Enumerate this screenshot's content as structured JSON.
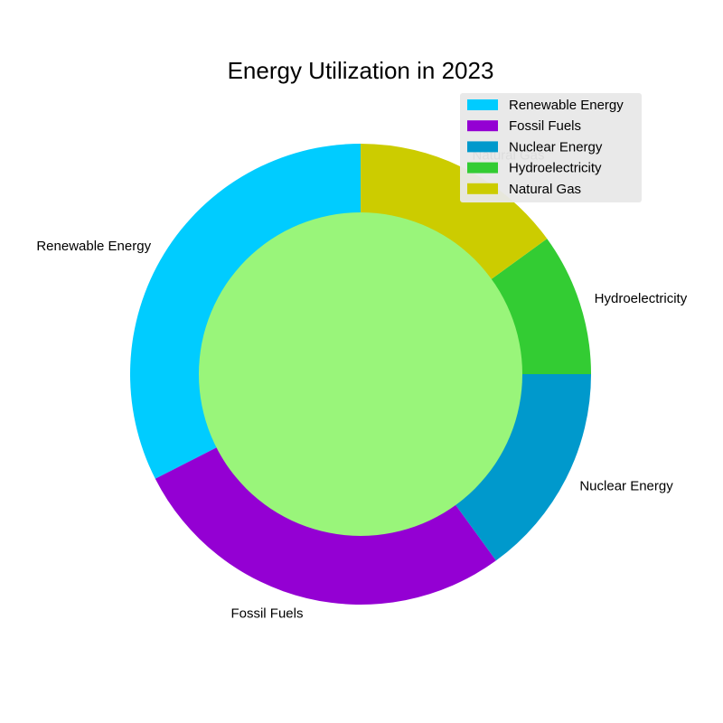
{
  "chart_data": {
    "type": "pie",
    "title": "Energy Utilization in 2023",
    "categories": [
      "Renewable Energy",
      "Fossil Fuels",
      "Nuclear Energy",
      "Hydroelectricity",
      "Natural Gas"
    ],
    "values": [
      32.5,
      27.5,
      15,
      10,
      15
    ],
    "colors": [
      "#00ccff",
      "#9400d3",
      "#0099cc",
      "#33cc33",
      "#cccc00"
    ],
    "center_color": "#99f57a",
    "start_angle_deg": 90,
    "direction": "counterclockwise",
    "legend_position": "top-right",
    "legend_background": "#e8e8e8"
  }
}
